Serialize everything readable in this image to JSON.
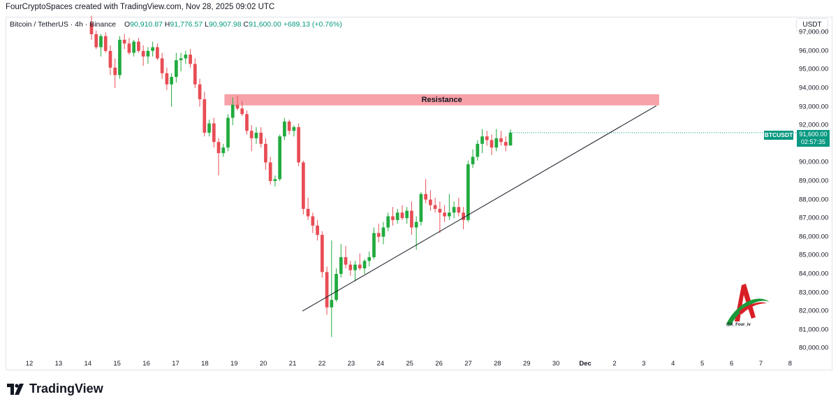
{
  "header": {
    "text": "FourCryptoSpaces created with TradingView.com, Nov 28, 2025 09:02 UTC"
  },
  "legend": {
    "symbol": "Bitcoin / TetherUS · 4h · Binance",
    "o_label": "O",
    "o_value": "90,910.87",
    "h_label": "H",
    "h_value": "91,776.57",
    "l_label": "L",
    "l_value": "90,907.98",
    "c_label": "C",
    "c_value": "91,600.00",
    "change": "+689.13 (+0.76%)"
  },
  "price_axis": {
    "unit": "USDT"
  },
  "current": {
    "symbol": "BTCUSDT",
    "price": "91,600.00",
    "countdown": "02:57:35",
    "color": "#089981"
  },
  "annotations": {
    "resistance_label": "Resistance",
    "resistance_color": "#f7a1a8",
    "trendline_color": "#131722"
  },
  "watermark": {
    "handle": "@X_Four_iv"
  },
  "brand": {
    "name": "TradingView"
  },
  "colors": {
    "up": "#089981",
    "down": "#f23645",
    "up_candle": "#22ab3f",
    "down_candle": "#e84d55"
  },
  "chart_data": {
    "type": "candlestick",
    "title": "Bitcoin / TetherUS · 4h · Binance",
    "xlabel": "",
    "ylabel": "",
    "ylim": [
      79600,
      97800
    ],
    "y_ticks": [
      "97,000.00",
      "96,000.00",
      "95,000.00",
      "94,000.00",
      "93,000.00",
      "92,000.00",
      "91,000.00",
      "90,000.00",
      "89,000.00",
      "88,000.00",
      "87,000.00",
      "86,000.00",
      "85,000.00",
      "84,000.00",
      "83,000.00",
      "82,000.00",
      "81,000.00",
      "80,000.00"
    ],
    "x_ticks": [
      "12",
      "13",
      "14",
      "15",
      "16",
      "17",
      "18",
      "19",
      "20",
      "21",
      "22",
      "23",
      "24",
      "25",
      "26",
      "27",
      "28",
      "29",
      "30",
      "Dec",
      "2",
      "3",
      "4",
      "5",
      "6",
      "7",
      "8"
    ],
    "candles": [
      {
        "o": 97500,
        "h": 97900,
        "l": 96600,
        "c": 96900
      },
      {
        "o": 96900,
        "h": 97100,
        "l": 96100,
        "c": 96200
      },
      {
        "o": 96200,
        "h": 96900,
        "l": 95700,
        "c": 96800
      },
      {
        "o": 96800,
        "h": 97000,
        "l": 95900,
        "c": 96000
      },
      {
        "o": 96000,
        "h": 96300,
        "l": 94700,
        "c": 95100
      },
      {
        "o": 95100,
        "h": 95600,
        "l": 94000,
        "c": 94700
      },
      {
        "o": 94700,
        "h": 96800,
        "l": 94500,
        "c": 96600
      },
      {
        "o": 96600,
        "h": 96900,
        "l": 96100,
        "c": 96400
      },
      {
        "o": 96400,
        "h": 96700,
        "l": 95800,
        "c": 95900
      },
      {
        "o": 95900,
        "h": 96600,
        "l": 95700,
        "c": 96500
      },
      {
        "o": 96500,
        "h": 96700,
        "l": 95900,
        "c": 96000
      },
      {
        "o": 96000,
        "h": 96300,
        "l": 95200,
        "c": 95700
      },
      {
        "o": 95700,
        "h": 96200,
        "l": 95300,
        "c": 96000
      },
      {
        "o": 96000,
        "h": 96500,
        "l": 95700,
        "c": 96200
      },
      {
        "o": 96200,
        "h": 96400,
        "l": 95500,
        "c": 95600
      },
      {
        "o": 95600,
        "h": 95900,
        "l": 94500,
        "c": 94800
      },
      {
        "o": 94800,
        "h": 95100,
        "l": 93900,
        "c": 94200
      },
      {
        "o": 94200,
        "h": 94800,
        "l": 93000,
        "c": 94600
      },
      {
        "o": 94600,
        "h": 95900,
        "l": 94300,
        "c": 95500
      },
      {
        "o": 95500,
        "h": 95900,
        "l": 94900,
        "c": 95600
      },
      {
        "o": 95600,
        "h": 96000,
        "l": 95300,
        "c": 95800
      },
      {
        "o": 95800,
        "h": 96100,
        "l": 95100,
        "c": 95300
      },
      {
        "o": 95300,
        "h": 95600,
        "l": 94000,
        "c": 94200
      },
      {
        "o": 94200,
        "h": 94500,
        "l": 93000,
        "c": 93400
      },
      {
        "o": 93400,
        "h": 93800,
        "l": 91400,
        "c": 91600
      },
      {
        "o": 91600,
        "h": 92300,
        "l": 91400,
        "c": 92100
      },
      {
        "o": 92100,
        "h": 92400,
        "l": 90800,
        "c": 91100
      },
      {
        "o": 91100,
        "h": 91300,
        "l": 89300,
        "c": 90500
      },
      {
        "o": 90500,
        "h": 91000,
        "l": 90300,
        "c": 90800
      },
      {
        "o": 90800,
        "h": 92600,
        "l": 90600,
        "c": 92400
      },
      {
        "o": 92400,
        "h": 93500,
        "l": 92000,
        "c": 93100
      },
      {
        "o": 93100,
        "h": 93600,
        "l": 92800,
        "c": 92900
      },
      {
        "o": 92900,
        "h": 93300,
        "l": 92500,
        "c": 92600
      },
      {
        "o": 92600,
        "h": 92800,
        "l": 91500,
        "c": 91700
      },
      {
        "o": 91700,
        "h": 92000,
        "l": 90600,
        "c": 91300
      },
      {
        "o": 91300,
        "h": 91900,
        "l": 91000,
        "c": 91600
      },
      {
        "o": 91600,
        "h": 91900,
        "l": 90800,
        "c": 91000
      },
      {
        "o": 91000,
        "h": 91300,
        "l": 89600,
        "c": 90000
      },
      {
        "o": 90000,
        "h": 90300,
        "l": 88800,
        "c": 89000
      },
      {
        "o": 89000,
        "h": 89300,
        "l": 88700,
        "c": 89100
      },
      {
        "o": 89100,
        "h": 91500,
        "l": 89000,
        "c": 91400
      },
      {
        "o": 91400,
        "h": 92400,
        "l": 91200,
        "c": 92200
      },
      {
        "o": 92200,
        "h": 92300,
        "l": 91500,
        "c": 91700
      },
      {
        "o": 91700,
        "h": 92000,
        "l": 91400,
        "c": 91900
      },
      {
        "o": 91900,
        "h": 92100,
        "l": 89800,
        "c": 90000
      },
      {
        "o": 90000,
        "h": 90100,
        "l": 87200,
        "c": 87500
      },
      {
        "o": 87500,
        "h": 88100,
        "l": 86900,
        "c": 87100
      },
      {
        "o": 87100,
        "h": 87300,
        "l": 86200,
        "c": 86600
      },
      {
        "o": 86600,
        "h": 86900,
        "l": 85800,
        "c": 86100
      },
      {
        "o": 86100,
        "h": 86300,
        "l": 83800,
        "c": 84100
      },
      {
        "o": 84100,
        "h": 84400,
        "l": 81800,
        "c": 82200
      },
      {
        "o": 82200,
        "h": 85800,
        "l": 80600,
        "c": 82600
      },
      {
        "o": 82600,
        "h": 84300,
        "l": 82500,
        "c": 84000
      },
      {
        "o": 84000,
        "h": 85600,
        "l": 83800,
        "c": 84900
      },
      {
        "o": 84900,
        "h": 85500,
        "l": 84300,
        "c": 84500
      },
      {
        "o": 84500,
        "h": 84700,
        "l": 83900,
        "c": 84200
      },
      {
        "o": 84200,
        "h": 84700,
        "l": 83600,
        "c": 84500
      },
      {
        "o": 84500,
        "h": 85100,
        "l": 84200,
        "c": 84300
      },
      {
        "o": 84300,
        "h": 84800,
        "l": 84000,
        "c": 84700
      },
      {
        "o": 84700,
        "h": 85200,
        "l": 84400,
        "c": 84900
      },
      {
        "o": 84900,
        "h": 86500,
        "l": 84800,
        "c": 86200
      },
      {
        "o": 86200,
        "h": 86700,
        "l": 85700,
        "c": 86000
      },
      {
        "o": 86000,
        "h": 86800,
        "l": 85600,
        "c": 86500
      },
      {
        "o": 86500,
        "h": 87300,
        "l": 86300,
        "c": 87100
      },
      {
        "o": 87100,
        "h": 87600,
        "l": 86600,
        "c": 86900
      },
      {
        "o": 86900,
        "h": 87500,
        "l": 86700,
        "c": 87300
      },
      {
        "o": 87300,
        "h": 87700,
        "l": 86900,
        "c": 87000
      },
      {
        "o": 87000,
        "h": 87600,
        "l": 86700,
        "c": 87400
      },
      {
        "o": 87400,
        "h": 87900,
        "l": 86100,
        "c": 86500
      },
      {
        "o": 86500,
        "h": 87100,
        "l": 85300,
        "c": 86800
      },
      {
        "o": 86800,
        "h": 88400,
        "l": 86600,
        "c": 88300
      },
      {
        "o": 88300,
        "h": 89100,
        "l": 87800,
        "c": 88000
      },
      {
        "o": 88000,
        "h": 88500,
        "l": 87400,
        "c": 87700
      },
      {
        "o": 87700,
        "h": 88100,
        "l": 87300,
        "c": 87500
      },
      {
        "o": 87500,
        "h": 87900,
        "l": 86200,
        "c": 87300
      },
      {
        "o": 87300,
        "h": 87700,
        "l": 86800,
        "c": 87100
      },
      {
        "o": 87100,
        "h": 88300,
        "l": 86900,
        "c": 87300
      },
      {
        "o": 87300,
        "h": 87900,
        "l": 87000,
        "c": 87600
      },
      {
        "o": 87600,
        "h": 88100,
        "l": 87100,
        "c": 87300
      },
      {
        "o": 87300,
        "h": 87600,
        "l": 86400,
        "c": 86900
      },
      {
        "o": 86900,
        "h": 90100,
        "l": 86800,
        "c": 89900
      },
      {
        "o": 89900,
        "h": 90700,
        "l": 89700,
        "c": 90300
      },
      {
        "o": 90300,
        "h": 91200,
        "l": 90100,
        "c": 91000
      },
      {
        "o": 91000,
        "h": 91800,
        "l": 90500,
        "c": 91400
      },
      {
        "o": 91400,
        "h": 91700,
        "l": 90900,
        "c": 91200
      },
      {
        "o": 91200,
        "h": 91500,
        "l": 90400,
        "c": 90800
      },
      {
        "o": 90800,
        "h": 91800,
        "l": 90600,
        "c": 91300
      },
      {
        "o": 91300,
        "h": 91700,
        "l": 90900,
        "c": 91100
      },
      {
        "o": 91100,
        "h": 91400,
        "l": 90600,
        "c": 90900
      },
      {
        "o": 90910.87,
        "h": 91776.57,
        "l": 90907.98,
        "c": 91600
      }
    ],
    "resistance_zone": {
      "label": "Resistance",
      "low": 93070,
      "high": 93670,
      "x_start": "18",
      "x_end": "3"
    },
    "trendline": {
      "from": {
        "x": "21",
        "y": 82000
      },
      "to": {
        "x": "3",
        "y": 93050
      }
    }
  }
}
